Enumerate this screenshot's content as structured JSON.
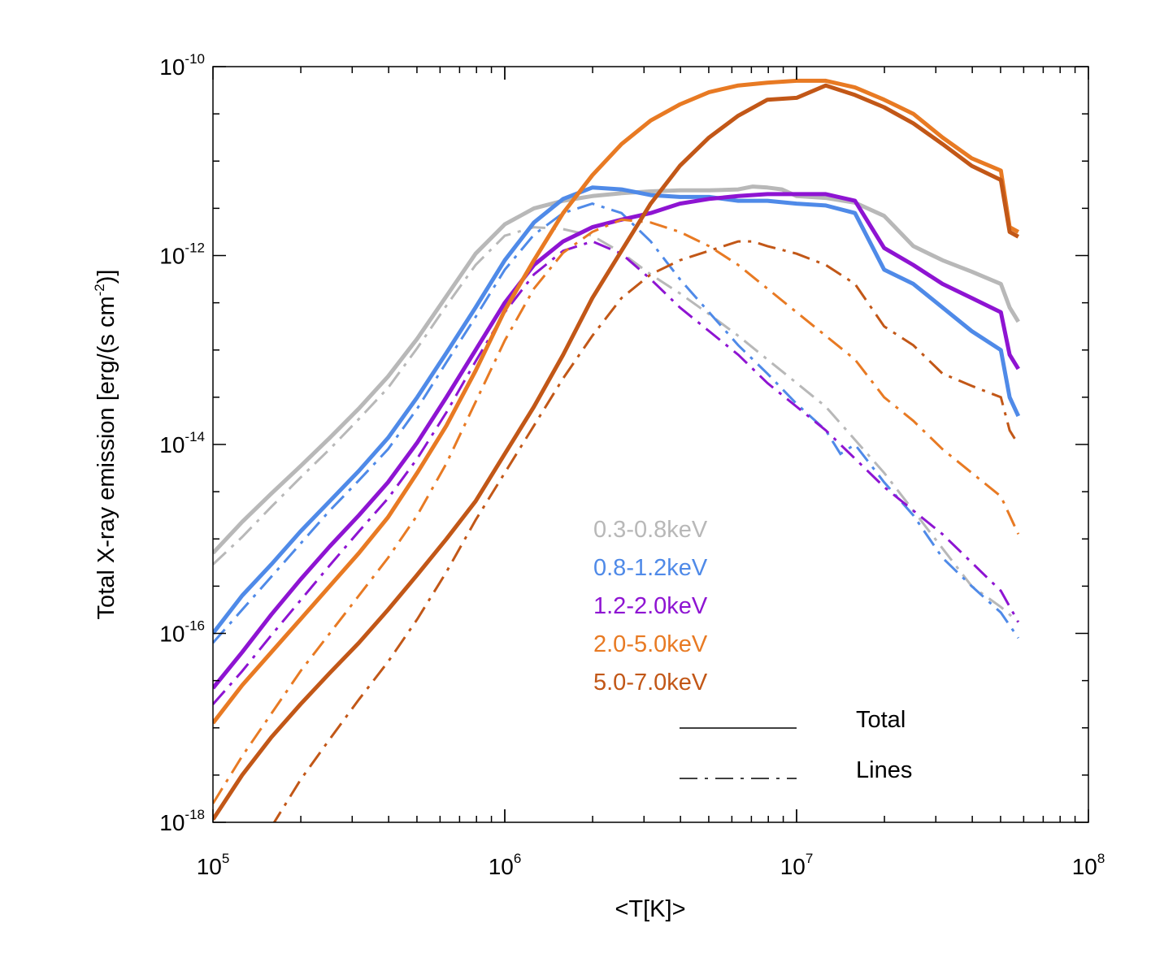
{
  "chart_data": {
    "type": "line",
    "title": "",
    "xlabel": "<T[K]>",
    "ylabel": "Total X-ray emission [erg/(s cm",
    "ylabel_exp": "-2",
    "ylabel_close": ")]",
    "xscale": "log",
    "yscale": "log",
    "xlim": [
      100000,
      100000000
    ],
    "ylim": [
      1e-18,
      1e-10
    ],
    "x_ticks": [
      {
        "value": 100000,
        "base": "10",
        "exp": "5"
      },
      {
        "value": 1000000,
        "base": "10",
        "exp": "6"
      },
      {
        "value": 10000000,
        "base": "10",
        "exp": "7"
      },
      {
        "value": 100000000,
        "base": "10",
        "exp": "8"
      }
    ],
    "y_ticks": [
      {
        "value": 1e-18,
        "base": "10",
        "exp": "-18"
      },
      {
        "value": 1e-16,
        "base": "10",
        "exp": "-16"
      },
      {
        "value": 1e-14,
        "base": "10",
        "exp": "-14"
      },
      {
        "value": 1e-12,
        "base": "10",
        "exp": "-12"
      },
      {
        "value": 1e-10,
        "base": "10",
        "exp": "-10"
      }
    ],
    "legend_style": {
      "total_label": "Total",
      "lines_label": "Lines"
    },
    "series": [
      {
        "name": "0.3-0.8keV",
        "color": "#b8b8b8",
        "total": [
          [
            5.0,
            -15.15
          ],
          [
            5.1,
            -14.82
          ],
          [
            5.2,
            -14.52
          ],
          [
            5.3,
            -14.23
          ],
          [
            5.4,
            -13.93
          ],
          [
            5.5,
            -13.62
          ],
          [
            5.6,
            -13.28
          ],
          [
            5.7,
            -12.88
          ],
          [
            5.8,
            -12.43
          ],
          [
            5.9,
            -11.98
          ],
          [
            6.0,
            -11.67
          ],
          [
            6.1,
            -11.5
          ],
          [
            6.2,
            -11.42
          ],
          [
            6.3,
            -11.37
          ],
          [
            6.4,
            -11.34
          ],
          [
            6.5,
            -11.32
          ],
          [
            6.6,
            -11.31
          ],
          [
            6.7,
            -11.31
          ],
          [
            6.8,
            -11.3
          ],
          [
            6.85,
            -11.27
          ],
          [
            6.9,
            -11.28
          ],
          [
            6.95,
            -11.3
          ],
          [
            7.0,
            -11.37
          ],
          [
            7.1,
            -11.39
          ],
          [
            7.2,
            -11.44
          ],
          [
            7.3,
            -11.58
          ],
          [
            7.4,
            -11.9
          ],
          [
            7.5,
            -12.05
          ],
          [
            7.6,
            -12.17
          ],
          [
            7.7,
            -12.3
          ],
          [
            7.73,
            -12.55
          ],
          [
            7.76,
            -12.7
          ]
        ],
        "lines": [
          [
            5.0,
            -15.27
          ],
          [
            5.1,
            -14.98
          ],
          [
            5.2,
            -14.66
          ],
          [
            5.3,
            -14.35
          ],
          [
            5.4,
            -14.05
          ],
          [
            5.5,
            -13.73
          ],
          [
            5.6,
            -13.4
          ],
          [
            5.7,
            -12.98
          ],
          [
            5.8,
            -12.53
          ],
          [
            5.9,
            -12.1
          ],
          [
            6.0,
            -11.79
          ],
          [
            6.1,
            -11.7
          ],
          [
            6.2,
            -11.72
          ],
          [
            6.3,
            -11.79
          ],
          [
            6.4,
            -11.97
          ],
          [
            6.5,
            -12.2
          ],
          [
            6.6,
            -12.4
          ],
          [
            6.7,
            -12.62
          ],
          [
            6.8,
            -12.85
          ],
          [
            6.9,
            -13.1
          ],
          [
            7.0,
            -13.35
          ],
          [
            7.1,
            -13.6
          ],
          [
            7.2,
            -13.95
          ],
          [
            7.3,
            -14.3
          ],
          [
            7.4,
            -14.7
          ],
          [
            7.5,
            -15.1
          ],
          [
            7.6,
            -15.5
          ],
          [
            7.7,
            -15.72
          ],
          [
            7.76,
            -15.88
          ]
        ]
      },
      {
        "name": "0.8-1.2keV",
        "color": "#4f8ae8",
        "total": [
          [
            5.0,
            -16.0
          ],
          [
            5.1,
            -15.6
          ],
          [
            5.2,
            -15.27
          ],
          [
            5.3,
            -14.92
          ],
          [
            5.4,
            -14.6
          ],
          [
            5.5,
            -14.28
          ],
          [
            5.6,
            -13.93
          ],
          [
            5.7,
            -13.5
          ],
          [
            5.8,
            -13.03
          ],
          [
            5.9,
            -12.55
          ],
          [
            6.0,
            -12.05
          ],
          [
            6.1,
            -11.65
          ],
          [
            6.2,
            -11.4
          ],
          [
            6.3,
            -11.28
          ],
          [
            6.4,
            -11.3
          ],
          [
            6.5,
            -11.36
          ],
          [
            6.6,
            -11.38
          ],
          [
            6.7,
            -11.38
          ],
          [
            6.8,
            -11.42
          ],
          [
            6.9,
            -11.42
          ],
          [
            7.0,
            -11.45
          ],
          [
            7.1,
            -11.47
          ],
          [
            7.2,
            -11.55
          ],
          [
            7.3,
            -12.15
          ],
          [
            7.4,
            -12.3
          ],
          [
            7.5,
            -12.55
          ],
          [
            7.6,
            -12.8
          ],
          [
            7.7,
            -13.0
          ],
          [
            7.73,
            -13.5
          ],
          [
            7.76,
            -13.7
          ]
        ],
        "lines": [
          [
            5.0,
            -16.1
          ],
          [
            5.1,
            -15.75
          ],
          [
            5.2,
            -15.4
          ],
          [
            5.3,
            -15.05
          ],
          [
            5.4,
            -14.7
          ],
          [
            5.5,
            -14.38
          ],
          [
            5.6,
            -14.05
          ],
          [
            5.7,
            -13.62
          ],
          [
            5.8,
            -13.13
          ],
          [
            5.9,
            -12.65
          ],
          [
            6.0,
            -12.15
          ],
          [
            6.1,
            -11.78
          ],
          [
            6.2,
            -11.55
          ],
          [
            6.3,
            -11.45
          ],
          [
            6.4,
            -11.55
          ],
          [
            6.5,
            -11.85
          ],
          [
            6.6,
            -12.25
          ],
          [
            6.7,
            -12.6
          ],
          [
            6.8,
            -12.95
          ],
          [
            6.9,
            -13.25
          ],
          [
            7.0,
            -13.57
          ],
          [
            7.1,
            -13.85
          ],
          [
            7.15,
            -14.1
          ],
          [
            7.2,
            -14.0
          ],
          [
            7.3,
            -14.4
          ],
          [
            7.4,
            -14.75
          ],
          [
            7.5,
            -15.2
          ],
          [
            7.6,
            -15.5
          ],
          [
            7.7,
            -15.78
          ],
          [
            7.76,
            -16.05
          ]
        ]
      },
      {
        "name": "1.2-2.0keV",
        "color": "#8e14d2",
        "total": [
          [
            5.0,
            -16.58
          ],
          [
            5.1,
            -16.2
          ],
          [
            5.2,
            -15.8
          ],
          [
            5.3,
            -15.43
          ],
          [
            5.4,
            -15.08
          ],
          [
            5.5,
            -14.75
          ],
          [
            5.6,
            -14.4
          ],
          [
            5.7,
            -13.98
          ],
          [
            5.8,
            -13.5
          ],
          [
            5.9,
            -13.0
          ],
          [
            6.0,
            -12.5
          ],
          [
            6.1,
            -12.1
          ],
          [
            6.2,
            -11.85
          ],
          [
            6.3,
            -11.7
          ],
          [
            6.4,
            -11.62
          ],
          [
            6.5,
            -11.55
          ],
          [
            6.6,
            -11.45
          ],
          [
            6.7,
            -11.4
          ],
          [
            6.8,
            -11.37
          ],
          [
            6.9,
            -11.35
          ],
          [
            7.0,
            -11.35
          ],
          [
            7.1,
            -11.35
          ],
          [
            7.2,
            -11.42
          ],
          [
            7.3,
            -11.92
          ],
          [
            7.4,
            -12.1
          ],
          [
            7.5,
            -12.3
          ],
          [
            7.6,
            -12.45
          ],
          [
            7.7,
            -12.6
          ],
          [
            7.73,
            -13.05
          ],
          [
            7.76,
            -13.2
          ]
        ],
        "lines": [
          [
            5.0,
            -16.75
          ],
          [
            5.1,
            -16.4
          ],
          [
            5.2,
            -16.02
          ],
          [
            5.3,
            -15.65
          ],
          [
            5.4,
            -15.28
          ],
          [
            5.5,
            -14.92
          ],
          [
            5.6,
            -14.57
          ],
          [
            5.7,
            -14.15
          ],
          [
            5.8,
            -13.66
          ],
          [
            5.9,
            -13.12
          ],
          [
            6.0,
            -12.6
          ],
          [
            6.1,
            -12.2
          ],
          [
            6.2,
            -11.95
          ],
          [
            6.3,
            -11.85
          ],
          [
            6.4,
            -11.98
          ],
          [
            6.5,
            -12.25
          ],
          [
            6.6,
            -12.55
          ],
          [
            6.7,
            -12.8
          ],
          [
            6.8,
            -13.05
          ],
          [
            6.9,
            -13.35
          ],
          [
            7.0,
            -13.6
          ],
          [
            7.1,
            -13.85
          ],
          [
            7.2,
            -14.15
          ],
          [
            7.3,
            -14.45
          ],
          [
            7.4,
            -14.7
          ],
          [
            7.5,
            -14.95
          ],
          [
            7.6,
            -15.25
          ],
          [
            7.7,
            -15.55
          ],
          [
            7.76,
            -15.88
          ]
        ]
      },
      {
        "name": "2.0-5.0keV",
        "color": "#e87a23",
        "total": [
          [
            5.0,
            -16.95
          ],
          [
            5.1,
            -16.55
          ],
          [
            5.2,
            -16.2
          ],
          [
            5.3,
            -15.85
          ],
          [
            5.4,
            -15.5
          ],
          [
            5.5,
            -15.15
          ],
          [
            5.6,
            -14.77
          ],
          [
            5.7,
            -14.3
          ],
          [
            5.8,
            -13.8
          ],
          [
            5.9,
            -13.22
          ],
          [
            6.0,
            -12.58
          ],
          [
            6.1,
            -12.05
          ],
          [
            6.2,
            -11.55
          ],
          [
            6.3,
            -11.15
          ],
          [
            6.4,
            -10.82
          ],
          [
            6.5,
            -10.57
          ],
          [
            6.6,
            -10.4
          ],
          [
            6.7,
            -10.27
          ],
          [
            6.8,
            -10.2
          ],
          [
            6.9,
            -10.17
          ],
          [
            7.0,
            -10.15
          ],
          [
            7.1,
            -10.15
          ],
          [
            7.2,
            -10.22
          ],
          [
            7.3,
            -10.35
          ],
          [
            7.4,
            -10.5
          ],
          [
            7.5,
            -10.75
          ],
          [
            7.6,
            -10.97
          ],
          [
            7.7,
            -11.1
          ],
          [
            7.73,
            -11.7
          ],
          [
            7.76,
            -11.75
          ]
        ],
        "lines": [
          [
            5.0,
            -17.8
          ],
          [
            5.1,
            -17.3
          ],
          [
            5.2,
            -16.85
          ],
          [
            5.3,
            -16.4
          ],
          [
            5.4,
            -16.0
          ],
          [
            5.5,
            -15.6
          ],
          [
            5.6,
            -15.2
          ],
          [
            5.7,
            -14.75
          ],
          [
            5.8,
            -14.2
          ],
          [
            5.9,
            -13.55
          ],
          [
            6.0,
            -12.9
          ],
          [
            6.1,
            -12.35
          ],
          [
            6.2,
            -11.97
          ],
          [
            6.3,
            -11.75
          ],
          [
            6.4,
            -11.62
          ],
          [
            6.5,
            -11.65
          ],
          [
            6.6,
            -11.75
          ],
          [
            6.7,
            -11.9
          ],
          [
            6.8,
            -12.1
          ],
          [
            6.9,
            -12.35
          ],
          [
            7.0,
            -12.6
          ],
          [
            7.1,
            -12.85
          ],
          [
            7.2,
            -13.1
          ],
          [
            7.3,
            -13.5
          ],
          [
            7.4,
            -13.75
          ],
          [
            7.5,
            -14.05
          ],
          [
            7.6,
            -14.3
          ],
          [
            7.7,
            -14.55
          ],
          [
            7.76,
            -14.95
          ]
        ]
      },
      {
        "name": "5.0-7.0keV",
        "color": "#c25717",
        "total": [
          [
            5.0,
            -17.97
          ],
          [
            5.1,
            -17.5
          ],
          [
            5.2,
            -17.1
          ],
          [
            5.3,
            -16.75
          ],
          [
            5.4,
            -16.42
          ],
          [
            5.5,
            -16.1
          ],
          [
            5.6,
            -15.75
          ],
          [
            5.7,
            -15.38
          ],
          [
            5.8,
            -15.0
          ],
          [
            5.9,
            -14.6
          ],
          [
            6.0,
            -14.1
          ],
          [
            6.1,
            -13.6
          ],
          [
            6.2,
            -13.05
          ],
          [
            6.3,
            -12.45
          ],
          [
            6.4,
            -11.95
          ],
          [
            6.5,
            -11.45
          ],
          [
            6.6,
            -11.05
          ],
          [
            6.7,
            -10.75
          ],
          [
            6.8,
            -10.52
          ],
          [
            6.9,
            -10.35
          ],
          [
            7.0,
            -10.33
          ],
          [
            7.1,
            -10.2
          ],
          [
            7.2,
            -10.3
          ],
          [
            7.3,
            -10.43
          ],
          [
            7.4,
            -10.6
          ],
          [
            7.5,
            -10.82
          ],
          [
            7.6,
            -11.05
          ],
          [
            7.7,
            -11.2
          ],
          [
            7.73,
            -11.75
          ],
          [
            7.76,
            -11.8
          ]
        ],
        "lines": [
          [
            5.2,
            -18.05
          ],
          [
            5.3,
            -17.55
          ],
          [
            5.4,
            -17.12
          ],
          [
            5.5,
            -16.7
          ],
          [
            5.6,
            -16.3
          ],
          [
            5.7,
            -15.85
          ],
          [
            5.8,
            -15.35
          ],
          [
            5.9,
            -14.8
          ],
          [
            6.0,
            -14.3
          ],
          [
            6.1,
            -13.8
          ],
          [
            6.2,
            -13.3
          ],
          [
            6.3,
            -12.85
          ],
          [
            6.4,
            -12.45
          ],
          [
            6.5,
            -12.2
          ],
          [
            6.6,
            -12.05
          ],
          [
            6.7,
            -11.95
          ],
          [
            6.8,
            -11.85
          ],
          [
            6.85,
            -11.85
          ],
          [
            6.9,
            -11.9
          ],
          [
            7.0,
            -11.98
          ],
          [
            7.1,
            -12.1
          ],
          [
            7.2,
            -12.3
          ],
          [
            7.3,
            -12.75
          ],
          [
            7.4,
            -12.95
          ],
          [
            7.5,
            -13.25
          ],
          [
            7.6,
            -13.38
          ],
          [
            7.7,
            -13.5
          ],
          [
            7.73,
            -13.85
          ],
          [
            7.76,
            -14.0
          ]
        ]
      }
    ]
  }
}
